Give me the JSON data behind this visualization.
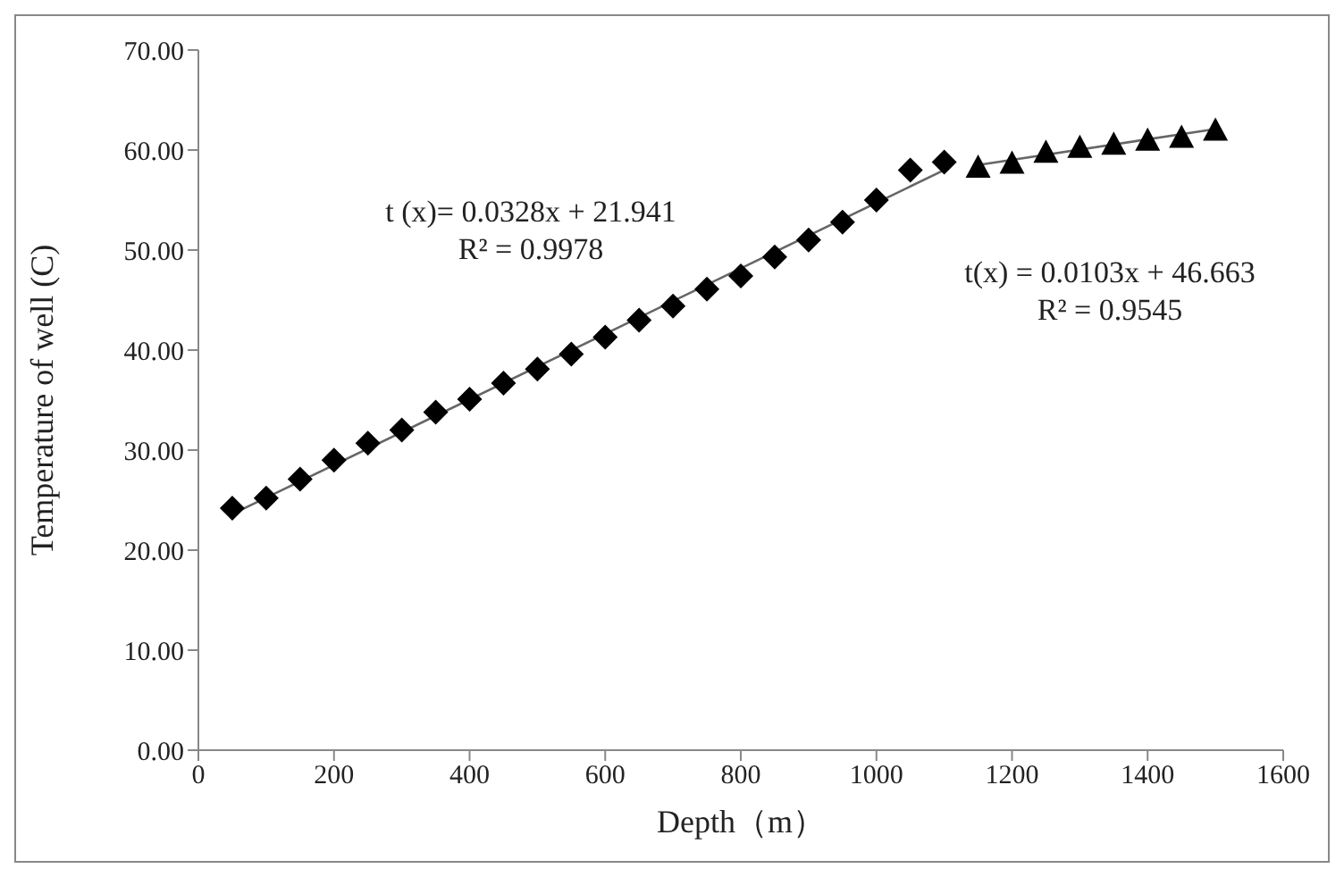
{
  "chart_data": {
    "type": "scatter",
    "xlabel": "Depth（m）",
    "ylabel": "Temperature of well (C)",
    "xlim": [
      0,
      1600
    ],
    "xticks": [
      0,
      200,
      400,
      600,
      800,
      1000,
      1200,
      1400,
      1600
    ],
    "ylim": [
      0,
      70
    ],
    "yticks": [
      {
        "value": 0,
        "label": "0.00"
      },
      {
        "value": 10,
        "label": "10.00"
      },
      {
        "value": 20,
        "label": "20.00"
      },
      {
        "value": 30,
        "label": "30.00"
      },
      {
        "value": 40,
        "label": "40.00"
      },
      {
        "value": 50,
        "label": "50.00"
      },
      {
        "value": 60,
        "label": "60.00"
      },
      {
        "value": 70,
        "label": "70.00"
      }
    ],
    "grid": false,
    "legend": false,
    "series": [
      {
        "marker": "diamond",
        "color": "#000000",
        "x": [
          50,
          100,
          150,
          200,
          250,
          300,
          350,
          400,
          450,
          500,
          550,
          600,
          650,
          700,
          750,
          800,
          850,
          900,
          950,
          1000,
          1050,
          1100
        ],
        "values": [
          24.2,
          25.2,
          27.1,
          29.0,
          30.7,
          32.0,
          33.8,
          35.1,
          36.7,
          38.1,
          39.6,
          41.3,
          43.0,
          44.4,
          46.1,
          47.4,
          49.3,
          51.0,
          52.8,
          55.0,
          58.0,
          58.8
        ]
      },
      {
        "marker": "triangle",
        "color": "#000000",
        "x": [
          1150,
          1200,
          1250,
          1300,
          1350,
          1400,
          1450,
          1500
        ],
        "values": [
          58.3,
          58.7,
          59.8,
          60.3,
          60.6,
          61.0,
          61.3,
          62.0
        ]
      },
      {
        "type": "line",
        "marker": "none",
        "color": "#666666",
        "x": [
          50,
          1100
        ],
        "values": [
          23.6,
          58.0
        ]
      },
      {
        "type": "line",
        "marker": "none",
        "color": "#666666",
        "x": [
          1150,
          1500
        ],
        "values": [
          58.5,
          62.1
        ]
      }
    ],
    "annotations": [
      "t (x)= 0.0328x + 21.941",
      "R² = 0.9978",
      "t(x) = 0.0103x + 46.663",
      "R² = 0.9545"
    ]
  }
}
